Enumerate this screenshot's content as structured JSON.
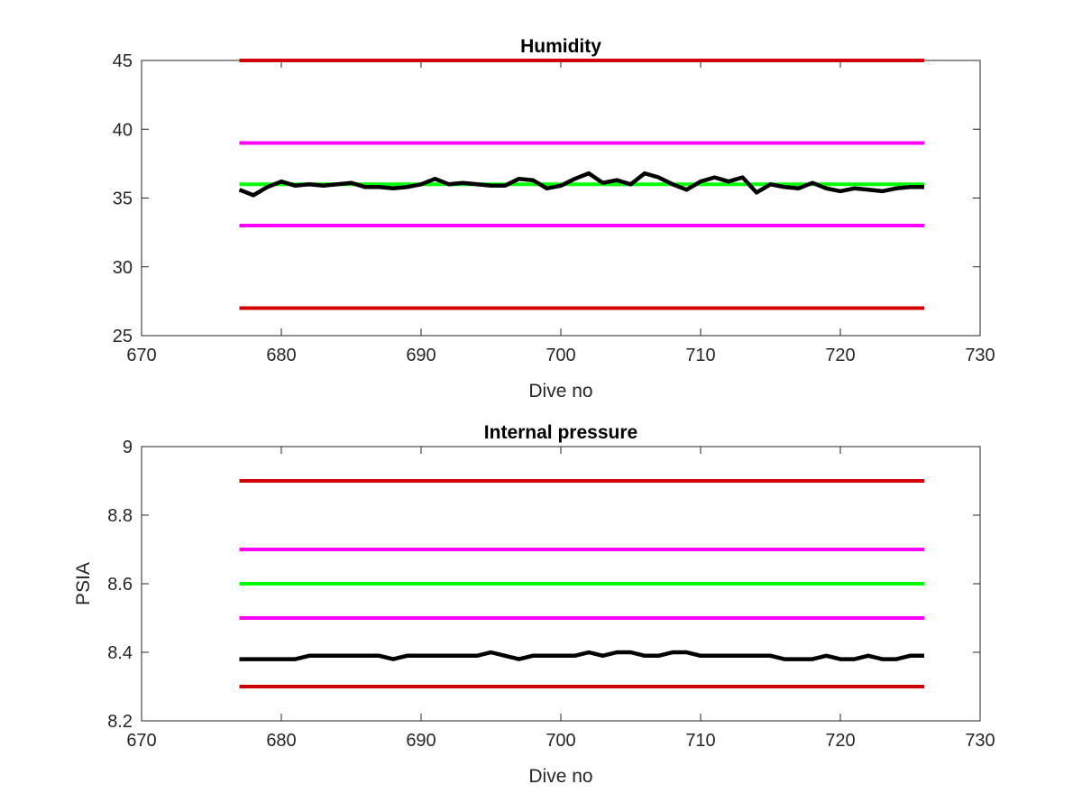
{
  "chart_data": [
    {
      "type": "line",
      "title": "Humidity",
      "xlabel": "Dive no",
      "ylabel": "",
      "xlim": [
        670,
        730
      ],
      "ylim": [
        25,
        45
      ],
      "xticks": [
        670,
        680,
        690,
        700,
        710,
        720,
        730
      ],
      "yticks": [
        25,
        30,
        35,
        40,
        45
      ],
      "grid": false,
      "series": [
        {
          "color": "#d00000",
          "x": [
            677,
            726
          ],
          "y": [
            45,
            45
          ]
        },
        {
          "color": "#ff00ff",
          "x": [
            677,
            726
          ],
          "y": [
            39,
            39
          ]
        },
        {
          "color": "#00ff00",
          "x": [
            677,
            726
          ],
          "y": [
            36,
            36
          ]
        },
        {
          "color": "#ff00ff",
          "x": [
            677,
            726
          ],
          "y": [
            33,
            33
          ]
        },
        {
          "color": "#d00000",
          "x": [
            677,
            726
          ],
          "y": [
            27,
            27
          ]
        },
        {
          "color": "#000000",
          "x": [
            677,
            678,
            679,
            680,
            681,
            682,
            683,
            684,
            685,
            686,
            687,
            688,
            689,
            690,
            691,
            692,
            693,
            694,
            695,
            696,
            697,
            698,
            699,
            700,
            701,
            702,
            703,
            704,
            705,
            706,
            707,
            708,
            709,
            710,
            711,
            712,
            713,
            714,
            715,
            716,
            717,
            718,
            719,
            720,
            721,
            722,
            723,
            724,
            725,
            726
          ],
          "y": [
            35.6,
            35.2,
            35.8,
            36.2,
            35.9,
            36.0,
            35.9,
            36.0,
            36.1,
            35.8,
            35.8,
            35.7,
            35.8,
            36.0,
            36.4,
            36.0,
            36.1,
            36.0,
            35.9,
            35.9,
            36.4,
            36.3,
            35.7,
            35.9,
            36.4,
            36.8,
            36.1,
            36.3,
            36.0,
            36.8,
            36.5,
            36.0,
            35.6,
            36.2,
            36.5,
            36.2,
            36.5,
            35.4,
            36.0,
            35.8,
            35.7,
            36.1,
            35.7,
            35.5,
            35.7,
            35.6,
            35.5,
            35.7,
            35.8,
            35.8
          ]
        }
      ]
    },
    {
      "type": "line",
      "title": "Internal pressure",
      "xlabel": "Dive no",
      "ylabel": "PSIA",
      "xlim": [
        670,
        730
      ],
      "ylim": [
        8.2,
        9.0
      ],
      "xticks": [
        670,
        680,
        690,
        700,
        710,
        720,
        730
      ],
      "yticks": [
        8.2,
        8.4,
        8.6,
        8.8,
        9.0
      ],
      "ytick_labels": [
        "8.2",
        "8.4",
        "8.6",
        "8.8",
        "9"
      ],
      "grid": false,
      "series": [
        {
          "color": "#d00000",
          "x": [
            677,
            726
          ],
          "y": [
            8.9,
            8.9
          ]
        },
        {
          "color": "#ff00ff",
          "x": [
            677,
            726
          ],
          "y": [
            8.7,
            8.7
          ]
        },
        {
          "color": "#00ff00",
          "x": [
            677,
            726
          ],
          "y": [
            8.6,
            8.6
          ]
        },
        {
          "color": "#ff00ff",
          "x": [
            677,
            726
          ],
          "y": [
            8.5,
            8.5
          ]
        },
        {
          "color": "#d00000",
          "x": [
            677,
            726
          ],
          "y": [
            8.3,
            8.3
          ]
        },
        {
          "color": "#000000",
          "x": [
            677,
            678,
            679,
            680,
            681,
            682,
            683,
            684,
            685,
            686,
            687,
            688,
            689,
            690,
            691,
            692,
            693,
            694,
            695,
            696,
            697,
            698,
            699,
            700,
            701,
            702,
            703,
            704,
            705,
            706,
            707,
            708,
            709,
            710,
            711,
            712,
            713,
            714,
            715,
            716,
            717,
            718,
            719,
            720,
            721,
            722,
            723,
            724,
            725,
            726
          ],
          "y": [
            8.38,
            8.38,
            8.38,
            8.38,
            8.38,
            8.39,
            8.39,
            8.39,
            8.39,
            8.39,
            8.39,
            8.38,
            8.39,
            8.39,
            8.39,
            8.39,
            8.39,
            8.39,
            8.4,
            8.39,
            8.38,
            8.39,
            8.39,
            8.39,
            8.39,
            8.4,
            8.39,
            8.4,
            8.4,
            8.39,
            8.39,
            8.4,
            8.4,
            8.39,
            8.39,
            8.39,
            8.39,
            8.39,
            8.39,
            8.38,
            8.38,
            8.38,
            8.39,
            8.38,
            8.38,
            8.39,
            8.38,
            8.38,
            8.39,
            8.39
          ]
        }
      ]
    }
  ]
}
